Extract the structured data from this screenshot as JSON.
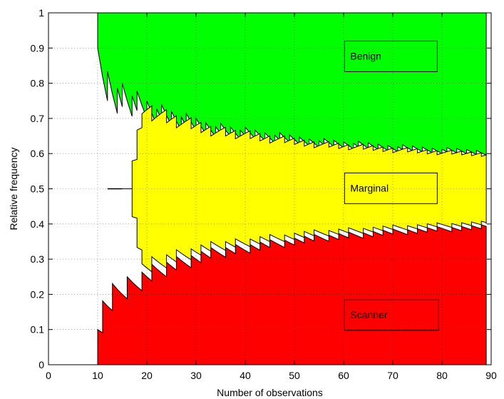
{
  "chart_data": {
    "type": "area",
    "xlabel": "Number of observations",
    "ylabel": "Relative frequency",
    "xlim": [
      0,
      90
    ],
    "ylim": [
      0,
      1
    ],
    "xticks": [
      "0",
      "10",
      "20",
      "30",
      "40",
      "50",
      "60",
      "70",
      "80",
      "90"
    ],
    "yticks": [
      "0",
      "0.1",
      "0.2",
      "0.3",
      "0.4",
      "0.5",
      "0.6",
      "0.7",
      "0.8",
      "0.9",
      "1"
    ],
    "grid": true,
    "n_start": 10,
    "n_end": 89,
    "series": [
      {
        "name": "Benign",
        "color": "#00ff00",
        "region": "upper"
      },
      {
        "name": "Marginal",
        "color": "#ffff00",
        "region": "middle"
      },
      {
        "name": "Scanner",
        "color": "#ff0000",
        "region": "lower"
      }
    ]
  }
}
